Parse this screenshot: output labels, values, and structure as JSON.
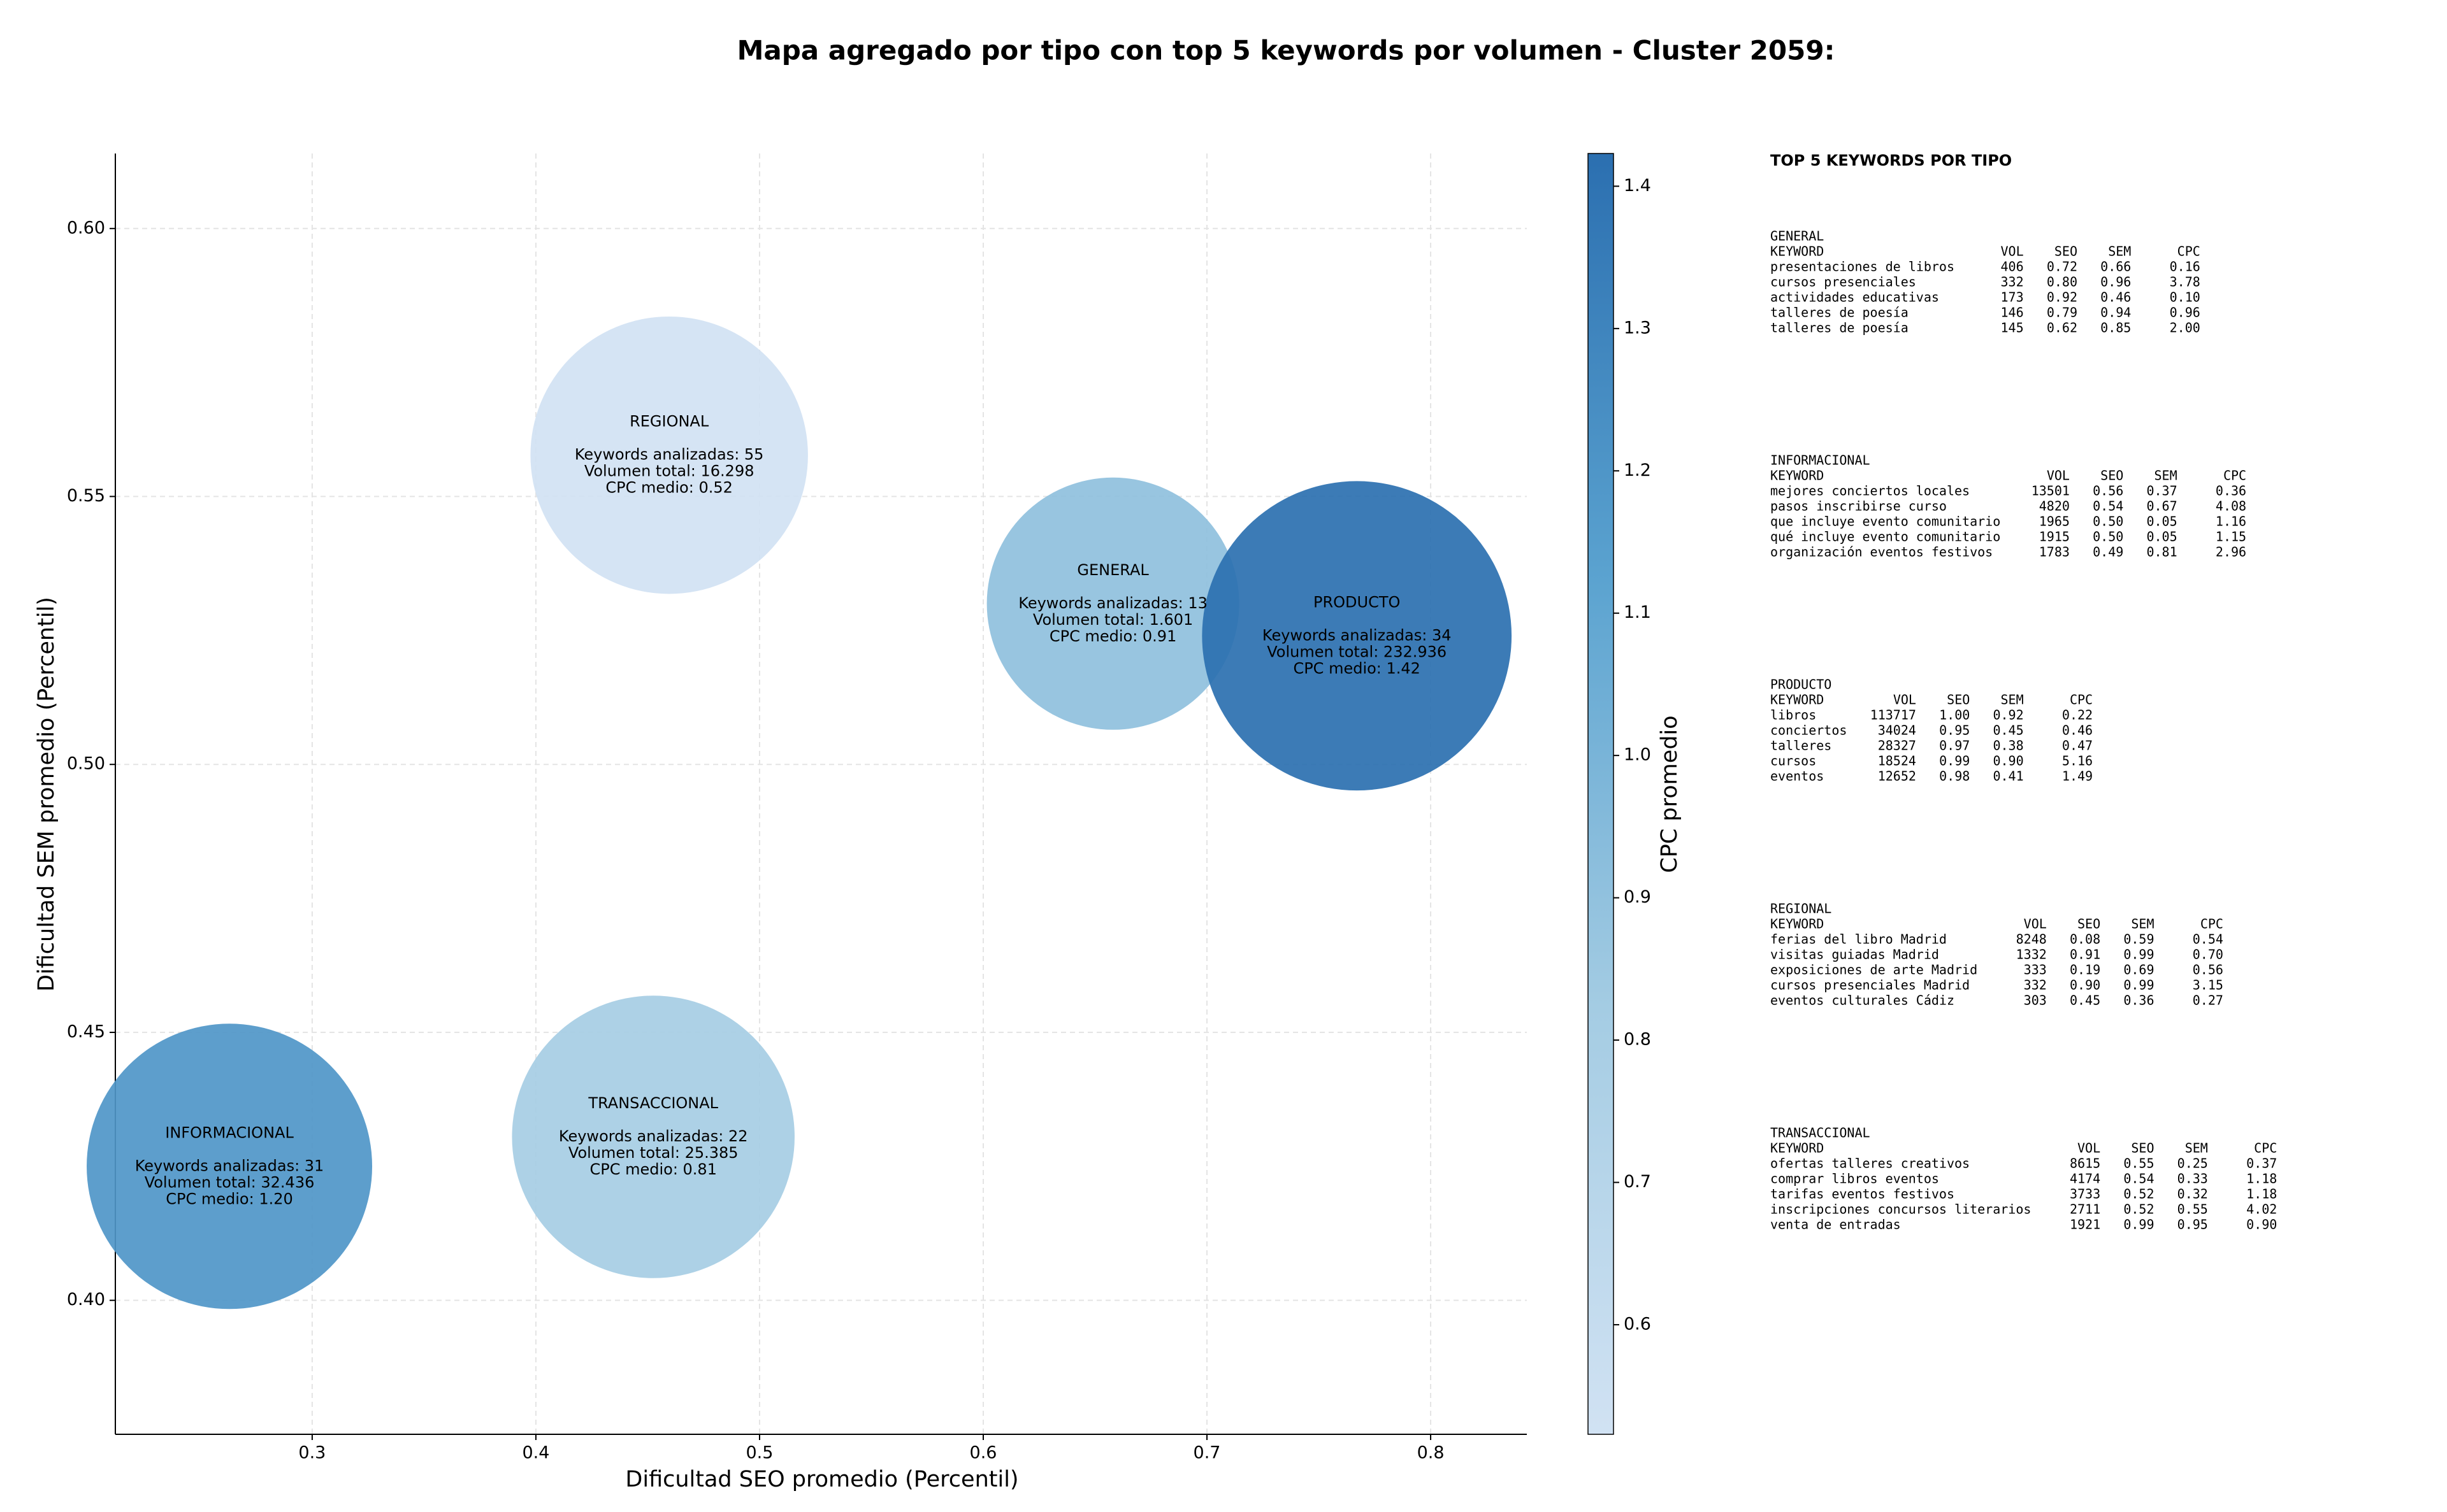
{
  "chart_data": {
    "type": "bubble",
    "title": "Mapa agregado por tipo con top 5 keywords por volumen - Cluster 2059:",
    "xlabel": "Dificultad SEO promedio (Percentil)",
    "ylabel": "Dificultad SEM promedio (Percentil)",
    "colorbar_label": "CPC promedio",
    "labels": [
      "REGIONAL",
      "GENERAL",
      "PRODUCTO",
      "INFORMACIONAL",
      "TRANSACCIONAL"
    ],
    "x": [
      0.4596,
      0.658,
      0.767,
      0.263,
      0.4525
    ],
    "y": [
      0.5577,
      0.53,
      0.524,
      0.425,
      0.4305
    ],
    "sizes": [
      16298,
      1601,
      232936,
      32436,
      25385
    ],
    "color_values": [
      0.52,
      0.91,
      1.42,
      1.2,
      0.81
    ],
    "annotations": [
      [
        "Keywords analizadas: 55",
        "Volumen total: 16.298",
        "CPC medio: 0.52"
      ],
      [
        "Keywords analizadas: 13",
        "Volumen total: 1.601",
        "CPC medio: 0.91"
      ],
      [
        "Keywords analizadas: 34",
        "Volumen total: 232.936",
        "CPC medio: 1.42"
      ],
      [
        "Keywords analizadas: 31",
        "Volumen total: 32.436",
        "CPC medio: 1.20"
      ],
      [
        "Keywords analizadas: 22",
        "Volumen total: 25.385",
        "CPC medio: 0.81"
      ]
    ],
    "xlim": [
      0.212,
      0.843
    ],
    "ylim": [
      0.375,
      0.614
    ],
    "xticks": [
      0.3,
      0.4,
      0.5,
      0.6,
      0.7,
      0.8
    ],
    "yticks": [
      {
        "value": 0.4,
        "label": "0.40"
      },
      0.45,
      {
        "value": 0.5,
        "label": "0.50"
      },
      0.55,
      {
        "value": 0.6,
        "label": "0.60"
      }
    ],
    "clim": [
      0.523,
      1.423
    ],
    "cticks": [
      0.6,
      0.7,
      0.8,
      0.9,
      {
        "value": 1.0,
        "label": "1.0"
      },
      1.1,
      1.2,
      1.3,
      1.4
    ],
    "colormap": [
      "#d1e2f3",
      "#a4cce3",
      "#5ba3d0",
      "#2b6fb0"
    ],
    "grid": true
  },
  "panel": {
    "title": "TOP 5 KEYWORDS POR TIPO",
    "sections": [
      {
        "name": "GENERAL",
        "columns": [
          "KEYWORD",
          "VOL",
          "SEO",
          "SEM",
          "CPC"
        ],
        "rows": [
          [
            "presentaciones de libros",
            "406",
            "0.72",
            "0.66",
            "0.16"
          ],
          [
            "cursos presenciales",
            "332",
            "0.80",
            "0.96",
            "3.78"
          ],
          [
            "actividades educativas",
            "173",
            "0.92",
            "0.46",
            "0.10"
          ],
          [
            "talleres de poesía",
            "146",
            "0.79",
            "0.94",
            "0.96"
          ],
          [
            "talleres de poesía",
            "145",
            "0.62",
            "0.85",
            "2.00"
          ]
        ]
      },
      {
        "name": "INFORMACIONAL",
        "columns": [
          "KEYWORD",
          "VOL",
          "SEO",
          "SEM",
          "CPC"
        ],
        "rows": [
          [
            "mejores conciertos locales",
            "13501",
            "0.56",
            "0.37",
            "0.36"
          ],
          [
            "pasos inscribirse curso",
            "4820",
            "0.54",
            "0.67",
            "4.08"
          ],
          [
            "que incluye evento comunitario",
            "1965",
            "0.50",
            "0.05",
            "1.16"
          ],
          [
            "qué incluye evento comunitario",
            "1915",
            "0.50",
            "0.05",
            "1.15"
          ],
          [
            "organización eventos festivos",
            "1783",
            "0.49",
            "0.81",
            "2.96"
          ]
        ]
      },
      {
        "name": "PRODUCTO",
        "columns": [
          "KEYWORD",
          "VOL",
          "SEO",
          "SEM",
          "CPC"
        ],
        "rows": [
          [
            "libros",
            "113717",
            "1.00",
            "0.92",
            "0.22"
          ],
          [
            "conciertos",
            "34024",
            "0.95",
            "0.45",
            "0.46"
          ],
          [
            "talleres",
            "28327",
            "0.97",
            "0.38",
            "0.47"
          ],
          [
            "cursos",
            "18524",
            "0.99",
            "0.90",
            "5.16"
          ],
          [
            "eventos",
            "12652",
            "0.98",
            "0.41",
            "1.49"
          ]
        ]
      },
      {
        "name": "REGIONAL",
        "columns": [
          "KEYWORD",
          "VOL",
          "SEO",
          "SEM",
          "CPC"
        ],
        "rows": [
          [
            "ferias del libro Madrid",
            "8248",
            "0.08",
            "0.59",
            "0.54"
          ],
          [
            "visitas guiadas Madrid",
            "1332",
            "0.91",
            "0.99",
            "0.70"
          ],
          [
            "exposiciones de arte Madrid",
            "333",
            "0.19",
            "0.69",
            "0.56"
          ],
          [
            "cursos presenciales Madrid",
            "332",
            "0.90",
            "0.99",
            "3.15"
          ],
          [
            "eventos culturales Cádiz",
            "303",
            "0.45",
            "0.36",
            "0.27"
          ]
        ]
      },
      {
        "name": "TRANSACCIONAL",
        "columns": [
          "KEYWORD",
          "VOL",
          "SEO",
          "SEM",
          "CPC"
        ],
        "rows": [
          [
            "ofertas talleres creativos",
            "8615",
            "0.55",
            "0.25",
            "0.37"
          ],
          [
            "comprar libros eventos",
            "4174",
            "0.54",
            "0.33",
            "1.18"
          ],
          [
            "tarifas eventos festivos",
            "3733",
            "0.52",
            "0.32",
            "1.18"
          ],
          [
            "inscripciones concursos literarios",
            "2711",
            "0.52",
            "0.55",
            "4.02"
          ],
          [
            "venta de entradas",
            "1921",
            "0.99",
            "0.95",
            "0.90"
          ]
        ]
      }
    ]
  }
}
